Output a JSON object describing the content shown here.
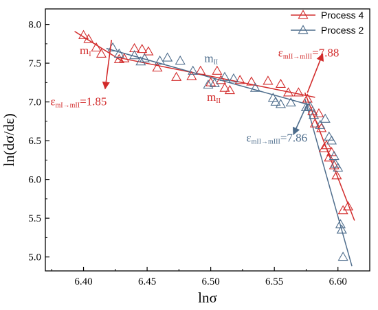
{
  "chart_data": {
    "type": "scatter",
    "xlabel": "lnσ",
    "ylabel": "ln(dσ/dε)",
    "xlim": [
      6.37,
      6.625
    ],
    "ylim": [
      4.82,
      8.2
    ],
    "xticks": [
      "6.40",
      "6.45",
      "6.50",
      "6.55",
      "6.60"
    ],
    "xtick_values": [
      6.4,
      6.45,
      6.5,
      6.55,
      6.6
    ],
    "yticks": [
      "5.0",
      "5.5",
      "6.0",
      "6.5",
      "7.0",
      "7.5",
      "8.0"
    ],
    "ytick_values": [
      5.0,
      5.5,
      6.0,
      6.5,
      7.0,
      7.5,
      8.0
    ],
    "grid": false,
    "legend_position": "top-right",
    "series": [
      {
        "name": "Process 4",
        "color": "#d22b2b",
        "marker": "triangle-open",
        "points": [
          [
            6.4,
            7.86
          ],
          [
            6.404,
            7.81
          ],
          [
            6.41,
            7.7
          ],
          [
            6.414,
            7.62
          ],
          [
            6.428,
            7.55
          ],
          [
            6.432,
            7.56
          ],
          [
            6.44,
            7.69
          ],
          [
            6.446,
            7.68
          ],
          [
            6.451,
            7.65
          ],
          [
            6.458,
            7.44
          ],
          [
            6.473,
            7.32
          ],
          [
            6.485,
            7.33
          ],
          [
            6.492,
            7.4
          ],
          [
            6.5,
            7.25
          ],
          [
            6.505,
            7.4
          ],
          [
            6.508,
            7.28
          ],
          [
            6.511,
            7.18
          ],
          [
            6.515,
            7.15
          ],
          [
            6.523,
            7.28
          ],
          [
            6.532,
            7.26
          ],
          [
            6.545,
            7.27
          ],
          [
            6.555,
            7.23
          ],
          [
            6.561,
            7.12
          ],
          [
            6.569,
            7.12
          ],
          [
            6.576,
            7.04
          ],
          [
            6.58,
            6.88
          ],
          [
            6.582,
            6.72
          ],
          [
            6.585,
            6.85
          ],
          [
            6.587,
            6.66
          ],
          [
            6.589,
            6.4
          ],
          [
            6.591,
            6.44
          ],
          [
            6.593,
            6.28
          ],
          [
            6.595,
            6.35
          ],
          [
            6.597,
            6.18
          ],
          [
            6.599,
            6.05
          ],
          [
            6.604,
            5.6
          ],
          [
            6.608,
            5.65
          ]
        ]
      },
      {
        "name": "Process 2",
        "color": "#4e6d8c",
        "marker": "triangle-open",
        "points": [
          [
            6.423,
            7.7
          ],
          [
            6.428,
            7.62
          ],
          [
            6.44,
            7.6
          ],
          [
            6.445,
            7.52
          ],
          [
            6.448,
            7.56
          ],
          [
            6.46,
            7.53
          ],
          [
            6.466,
            7.57
          ],
          [
            6.476,
            7.53
          ],
          [
            6.486,
            7.4
          ],
          [
            6.498,
            7.22
          ],
          [
            6.503,
            7.24
          ],
          [
            6.511,
            7.32
          ],
          [
            6.518,
            7.3
          ],
          [
            6.535,
            7.18
          ],
          [
            6.549,
            7.05
          ],
          [
            6.551,
            7.0
          ],
          [
            6.555,
            6.97
          ],
          [
            6.563,
            6.99
          ],
          [
            6.575,
            6.93
          ],
          [
            6.578,
            6.94
          ],
          [
            6.581,
            6.83
          ],
          [
            6.586,
            6.7
          ],
          [
            6.59,
            6.78
          ],
          [
            6.593,
            6.55
          ],
          [
            6.595,
            6.5
          ],
          [
            6.597,
            6.3
          ],
          [
            6.598,
            6.2
          ],
          [
            6.6,
            6.15
          ],
          [
            6.602,
            5.42
          ],
          [
            6.603,
            5.35
          ],
          [
            6.604,
            5.0
          ]
        ]
      }
    ],
    "fit_lines": [
      {
        "series": "Process 4",
        "segment": "m_I",
        "from": [
          6.393,
          7.91
        ],
        "to": [
          6.432,
          7.51
        ]
      },
      {
        "series": "Process 4",
        "segment": "m_II",
        "from": [
          6.425,
          7.58
        ],
        "to": [
          6.582,
          7.06
        ]
      },
      {
        "series": "Process 4",
        "segment": "m_III",
        "from": [
          6.574,
          7.12
        ],
        "to": [
          6.613,
          5.47
        ]
      },
      {
        "series": "Process 2",
        "segment": "m_II",
        "from": [
          6.418,
          7.69
        ],
        "to": [
          6.578,
          6.96
        ]
      },
      {
        "series": "Process 2",
        "segment": "m_III",
        "from": [
          6.574,
          7.04
        ],
        "to": [
          6.611,
          4.88
        ]
      }
    ],
    "annotations": [
      {
        "id": "mI",
        "text": "m",
        "sub": "I",
        "x": 6.397,
        "y": 7.615,
        "color": "#d22b2b"
      },
      {
        "id": "mII_blue",
        "text": "m",
        "sub": "II",
        "x": 6.495,
        "y": 7.515,
        "color": "#4e6d8c"
      },
      {
        "id": "mII_red",
        "text": "m",
        "sub": "II",
        "x": 6.497,
        "y": 7.015,
        "color": "#d22b2b"
      },
      {
        "id": "eps_1",
        "text": "ε",
        "sub": "mI→mII",
        "value": "=1.85",
        "x": 6.374,
        "y": 6.955,
        "color": "#d22b2b"
      },
      {
        "id": "eps_2",
        "text": "ε",
        "sub": "mII→mIII",
        "value": "=7.88",
        "x": 6.553,
        "y": 7.585,
        "color": "#d22b2b"
      },
      {
        "id": "eps_3",
        "text": "ε",
        "sub": "mII→mIII",
        "value": "=7.86",
        "x": 6.528,
        "y": 6.49,
        "color": "#4e6d8c"
      }
    ],
    "arrows": [
      {
        "color": "#d22b2b",
        "from": [
          6.422,
          7.8
        ],
        "to": [
          6.417,
          7.17
        ]
      },
      {
        "color": "#d22b2b",
        "from": [
          6.576,
          7.12
        ],
        "to": [
          6.588,
          7.62
        ]
      },
      {
        "color": "#4e6d8c",
        "from": [
          6.576,
          6.98
        ],
        "to": [
          6.565,
          6.58
        ]
      }
    ]
  }
}
